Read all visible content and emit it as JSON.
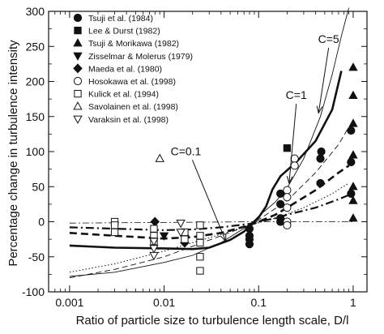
{
  "chart_data": {
    "type": "scatter",
    "title": "",
    "xlabel": "Ratio of particle size to turbulence length scale, D/l",
    "ylabel": "Percentage change in turbulence intensity",
    "xscale": "log",
    "xlim": [
      0.0006,
      1.4
    ],
    "ylim": [
      -100,
      300
    ],
    "xticks": [
      0.001,
      0.01,
      0.1,
      1
    ],
    "xtick_labels": [
      "0.001",
      "0.01",
      "0.1",
      "1"
    ],
    "yticks": [
      -100,
      -50,
      0,
      50,
      100,
      150,
      200,
      250,
      300
    ],
    "ytick_labels": [
      "-100",
      "-50",
      "0",
      "50",
      "100",
      "150",
      "200",
      "250",
      "300"
    ],
    "grid": false,
    "legend_position": "top-left",
    "series": [
      {
        "name": "Tsuji et al. (1984)",
        "marker": "circle-filled",
        "points": [
          [
            0.08,
            -10
          ],
          [
            0.08,
            -20
          ],
          [
            0.08,
            -25
          ],
          [
            0.08,
            -32
          ],
          [
            0.17,
            40
          ],
          [
            0.17,
            25
          ],
          [
            0.17,
            5
          ],
          [
            0.17,
            0
          ],
          [
            0.45,
            55
          ],
          [
            0.45,
            90
          ],
          [
            0.46,
            100
          ],
          [
            0.95,
            130
          ],
          [
            0.95,
            85
          ],
          [
            0.95,
            40
          ]
        ]
      },
      {
        "name": "Lee & Durst (1982)",
        "marker": "square-filled",
        "points": [
          [
            0.2,
            105
          ]
        ]
      },
      {
        "name": "Tsuji & Morikawa (1982)",
        "marker": "triangle-up-filled",
        "points": [
          [
            1.0,
            220
          ],
          [
            1.0,
            180
          ],
          [
            1.0,
            140
          ],
          [
            1.0,
            95
          ],
          [
            1.0,
            50
          ],
          [
            1.0,
            30
          ],
          [
            1.0,
            5
          ]
        ]
      },
      {
        "name": "Zisselmar & Molerus (1979)",
        "marker": "triangle-down-filled",
        "points": [
          [
            0.01,
            -20
          ]
        ]
      },
      {
        "name": "Maeda et al. (1980)",
        "marker": "diamond-filled",
        "points": [
          [
            0.008,
            0
          ],
          [
            0.0165,
            -20
          ],
          [
            0.0165,
            -30
          ]
        ]
      },
      {
        "name": "Hosokawa et al. (1998)",
        "marker": "circle-open",
        "points": [
          [
            0.2,
            45
          ],
          [
            0.2,
            35
          ],
          [
            0.2,
            20
          ],
          [
            0.2,
            0
          ],
          [
            0.2,
            -5
          ],
          [
            0.24,
            90
          ],
          [
            0.24,
            80
          ]
        ]
      },
      {
        "name": "Kulick et al. (1994)",
        "marker": "square-open",
        "points": [
          [
            0.003,
            0
          ],
          [
            0.003,
            -5
          ],
          [
            0.003,
            -15
          ],
          [
            0.0078,
            -10
          ],
          [
            0.0078,
            -20
          ],
          [
            0.0078,
            -28
          ],
          [
            0.0165,
            -15
          ],
          [
            0.0165,
            -25
          ],
          [
            0.024,
            -5
          ],
          [
            0.024,
            -20
          ],
          [
            0.024,
            -30
          ],
          [
            0.024,
            -50
          ],
          [
            0.024,
            -70
          ]
        ]
      },
      {
        "name": "Savolainen et al. (1998)",
        "marker": "triangle-up-open",
        "points": [
          [
            0.009,
            90
          ]
        ]
      },
      {
        "name": "Varaksin et al. (1998)",
        "marker": "triangle-down-open",
        "points": [
          [
            0.0078,
            -28
          ],
          [
            0.0078,
            -38
          ],
          [
            0.0078,
            -48
          ],
          [
            0.015,
            -2
          ],
          [
            0.015,
            -15
          ]
        ]
      }
    ],
    "curves": [
      {
        "style": "thin-solid",
        "points": [
          [
            0.001,
            -78
          ],
          [
            0.003,
            -72
          ],
          [
            0.01,
            -58
          ],
          [
            0.02,
            -48
          ],
          [
            0.04,
            -30
          ],
          [
            0.06,
            -15
          ],
          [
            0.08,
            -5
          ],
          [
            0.1,
            8
          ],
          [
            0.15,
            28
          ],
          [
            0.2,
            48
          ],
          [
            0.3,
            90
          ],
          [
            0.45,
            150
          ],
          [
            0.6,
            210
          ],
          [
            0.75,
            265
          ],
          [
            0.9,
            305
          ]
        ]
      },
      {
        "style": "thin-dashed",
        "points": [
          [
            0.001,
            -80
          ],
          [
            0.003,
            -68
          ],
          [
            0.01,
            -50
          ],
          [
            0.02,
            -35
          ],
          [
            0.04,
            -20
          ],
          [
            0.08,
            -5
          ],
          [
            0.1,
            3
          ],
          [
            0.2,
            30
          ],
          [
            0.4,
            70
          ],
          [
            0.7,
            110
          ],
          [
            0.9,
            135
          ]
        ]
      },
      {
        "style": "thin-dotted",
        "points": [
          [
            0.001,
            -72
          ],
          [
            0.003,
            -60
          ],
          [
            0.01,
            -42
          ],
          [
            0.02,
            -30
          ],
          [
            0.04,
            -18
          ],
          [
            0.08,
            -5
          ],
          [
            0.15,
            5
          ],
          [
            0.3,
            20
          ],
          [
            0.6,
            40
          ],
          [
            0.9,
            55
          ]
        ]
      },
      {
        "style": "thick-solid",
        "points": [
          [
            0.001,
            -34
          ],
          [
            0.003,
            -37
          ],
          [
            0.01,
            -38
          ],
          [
            0.02,
            -39
          ],
          [
            0.03,
            -37
          ],
          [
            0.05,
            -26
          ],
          [
            0.07,
            -14
          ],
          [
            0.08,
            -6
          ],
          [
            0.1,
            6
          ],
          [
            0.12,
            22
          ],
          [
            0.14,
            46
          ],
          [
            0.17,
            65
          ],
          [
            0.25,
            85
          ],
          [
            0.4,
            115
          ],
          [
            0.6,
            160
          ],
          [
            0.75,
            215
          ]
        ]
      },
      {
        "style": "thick-dashed",
        "points": [
          [
            0.001,
            -16
          ],
          [
            0.003,
            -20
          ],
          [
            0.01,
            -24
          ],
          [
            0.02,
            -22
          ],
          [
            0.04,
            -16
          ],
          [
            0.08,
            -5
          ],
          [
            0.1,
            0
          ],
          [
            0.15,
            10
          ],
          [
            0.2,
            20
          ],
          [
            0.4,
            45
          ],
          [
            0.7,
            70
          ],
          [
            0.9,
            80
          ]
        ]
      },
      {
        "style": "thick-dashdot",
        "points": [
          [
            0.001,
            -8
          ],
          [
            0.003,
            -10
          ],
          [
            0.01,
            -12
          ],
          [
            0.02,
            -11
          ],
          [
            0.04,
            -8
          ],
          [
            0.08,
            -3
          ],
          [
            0.1,
            0
          ],
          [
            0.15,
            5
          ],
          [
            0.2,
            10
          ],
          [
            0.4,
            20
          ],
          [
            0.7,
            32
          ],
          [
            0.9,
            38
          ]
        ]
      },
      {
        "style": "dash-dot-baseline",
        "points": [
          [
            0.001,
            -2
          ],
          [
            0.01,
            -1
          ],
          [
            0.1,
            0
          ],
          [
            1.0,
            0
          ]
        ]
      }
    ],
    "annotations": [
      {
        "text": "C=5",
        "x": 0.55,
        "y": 255,
        "arrow_to": [
          0.43,
          155
        ]
      },
      {
        "text": "C=1",
        "x": 0.25,
        "y": 175,
        "arrow_to": [
          0.21,
          55
        ]
      },
      {
        "text": "C=0.1",
        "x": 0.017,
        "y": 95,
        "arrow_to": [
          0.045,
          -28
        ]
      }
    ]
  }
}
